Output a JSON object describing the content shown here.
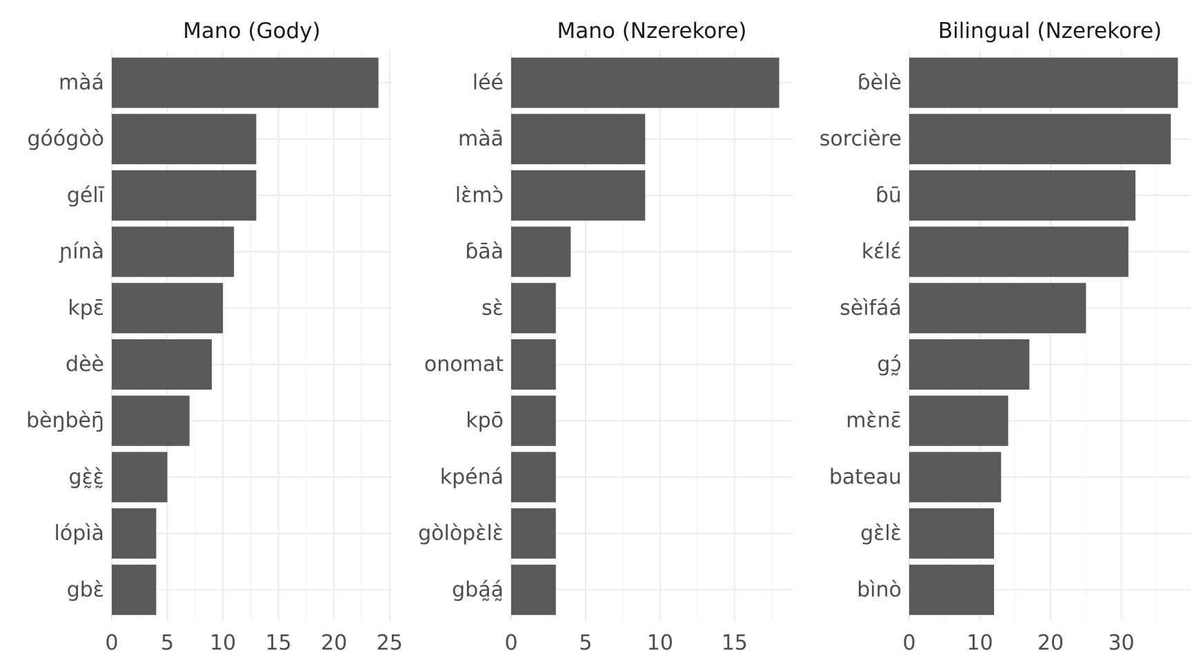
{
  "chart_data": [
    {
      "type": "bar",
      "orientation": "horizontal",
      "title": "Mano (Gody)",
      "categories": [
        "màá",
        "góógòò",
        "gélī",
        "ɲínà",
        "kpɛ̄",
        "dèè",
        "bèŋbèŋ̄",
        "gɛ̰̀ɛ̰̀",
        "lópìà",
        "gbɛ̀"
      ],
      "values": [
        24,
        13,
        13,
        11,
        10,
        9,
        7,
        5,
        4,
        4
      ],
      "xticks": [
        0,
        5,
        10,
        15,
        20,
        25
      ],
      "xlim": [
        0,
        25.2
      ],
      "grid": true,
      "bar_color": "#595959"
    },
    {
      "type": "bar",
      "orientation": "horizontal",
      "title": "Mano (Nzerekore)",
      "categories": [
        "léé",
        "màā",
        "lɛ̀mɔ̀",
        "ɓāà",
        "sɛ̀",
        "onomat",
        "kpō",
        "kpéná",
        "gòlòpɛ̀lɛ̀",
        "gbá̰á̰"
      ],
      "values": [
        18,
        9,
        9,
        4,
        3,
        3,
        3,
        3,
        3,
        3
      ],
      "xticks": [
        0,
        5,
        10,
        15
      ],
      "xlim": [
        0,
        18.9
      ],
      "grid": true,
      "bar_color": "#595959"
    },
    {
      "type": "bar",
      "orientation": "horizontal",
      "title": "Bilingual (Nzerekore)",
      "categories": [
        "ɓèlè",
        "sorcière",
        "ɓū",
        "kɛ́lɛ́",
        "sèìfáá",
        "gɔ̰́",
        "mɛ̀nɛ̄",
        "bateau",
        "gɛ̀lɛ̀",
        "bìnò"
      ],
      "values": [
        38,
        37,
        32,
        31,
        25,
        17,
        14,
        13,
        12,
        12
      ],
      "xticks": [
        0,
        10,
        20,
        30
      ],
      "xlim": [
        0,
        39.8
      ],
      "grid": true,
      "bar_color": "#595959"
    }
  ]
}
